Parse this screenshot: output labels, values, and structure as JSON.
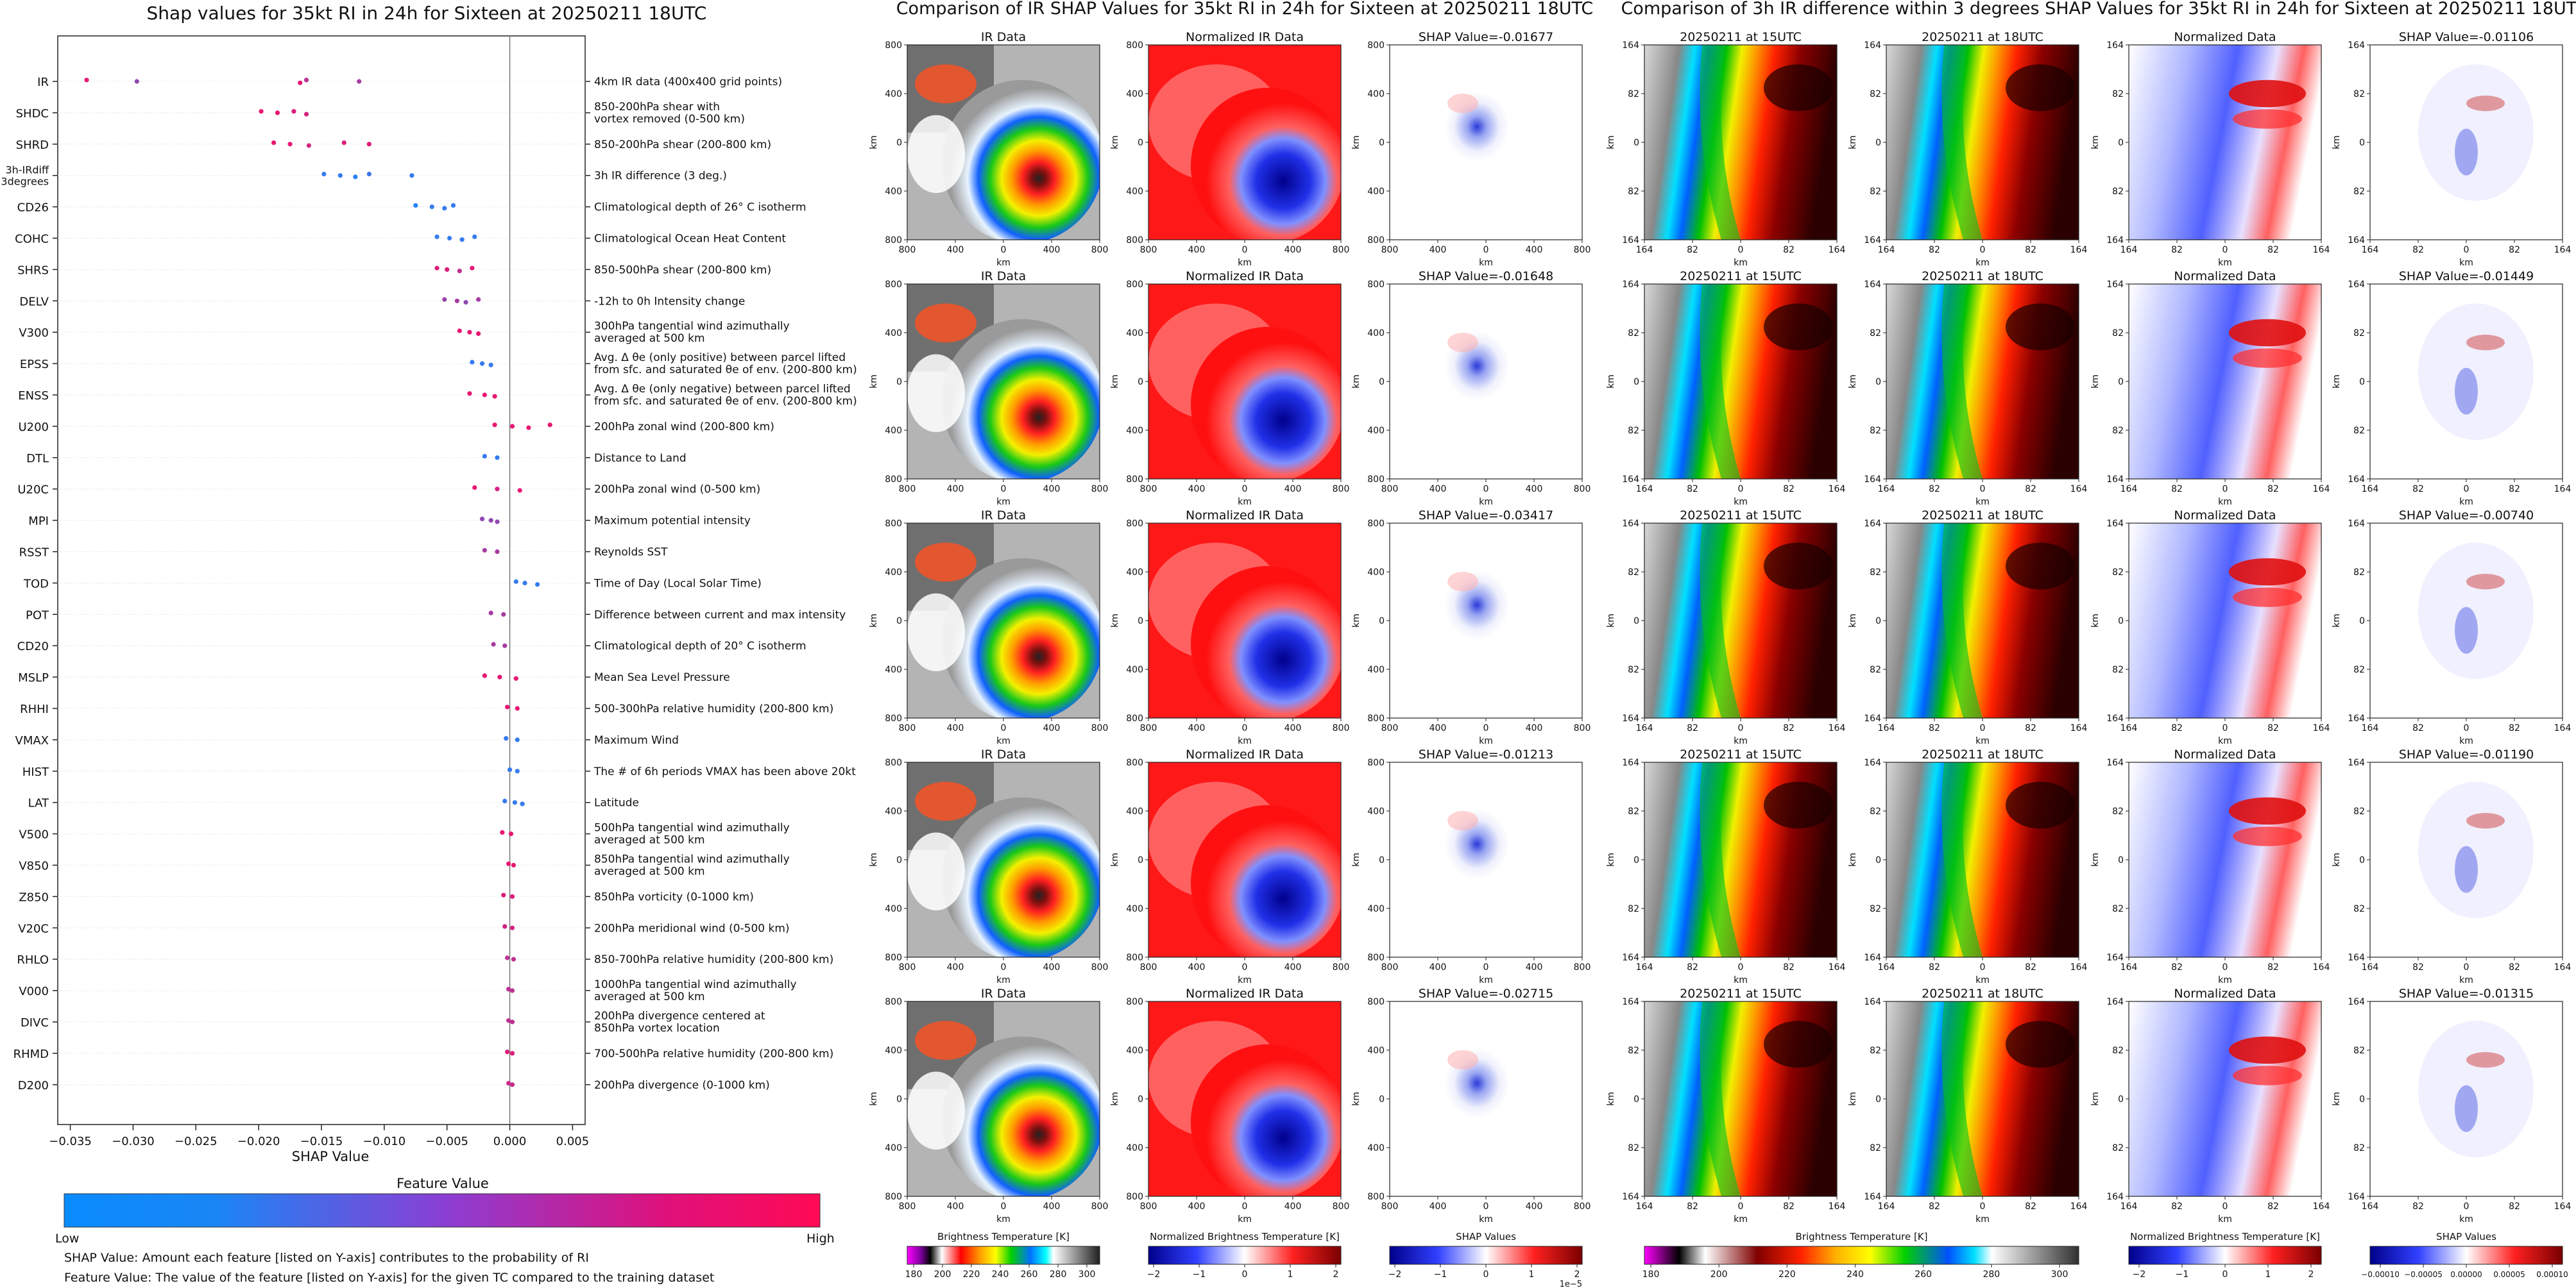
{
  "shap_chart": {
    "title": "Shap values for 35kt RI in 24h for Sixteen at 20250211 18UTC",
    "xlabel": "SHAP Value",
    "xlim": [
      -0.036,
      0.006
    ],
    "xticks": [
      -0.035,
      -0.03,
      -0.025,
      -0.02,
      -0.015,
      -0.01,
      -0.005,
      0.0,
      0.005
    ],
    "xtick_labels": [
      "−0.035",
      "−0.030",
      "−0.025",
      "−0.020",
      "−0.015",
      "−0.010",
      "−0.005",
      "0.000",
      "0.005"
    ],
    "colorbar_label": "Feature Value",
    "colorbar_low": "Low",
    "colorbar_high": "High",
    "note1": "SHAP Value: Amount each feature [listed on Y-axis] contributes to the probability of RI",
    "note2": "Feature Value: The value of the feature [listed on Y-axis] for the given TC compared to the training dataset"
  },
  "chart_data": [
    {
      "type": "scatter",
      "title": "Shap values for 35kt RI in 24h for Sixteen at 20250211 18UTC",
      "xlabel": "SHAP Value",
      "xlim": [
        -0.036,
        0.006
      ],
      "features": [
        {
          "name": "IR",
          "desc": [
            "4km IR data (400x400 grid points)"
          ],
          "points": [
            [
              -0.0337,
              0.9
            ],
            [
              -0.0297,
              0.5
            ],
            [
              -0.0167,
              0.9
            ],
            [
              -0.0162,
              0.7
            ],
            [
              -0.012,
              0.6
            ]
          ]
        },
        {
          "name": "SHDC",
          "desc": [
            "850-200hPa shear with",
            "vortex removed (0-500 km)"
          ],
          "points": [
            [
              -0.0198,
              0.9
            ],
            [
              -0.0185,
              0.9
            ],
            [
              -0.0162,
              0.8
            ],
            [
              -0.0172,
              0.85
            ]
          ]
        },
        {
          "name": "SHRD",
          "desc": [
            "850-200hPa shear (200-800 km)"
          ],
          "points": [
            [
              -0.0188,
              0.9
            ],
            [
              -0.0175,
              0.9
            ],
            [
              -0.016,
              0.8
            ],
            [
              -0.0132,
              0.85
            ],
            [
              -0.0112,
              0.85
            ]
          ]
        },
        {
          "name": "3h-IRdiff\n3degrees",
          "desc": [
            "3h IR difference (3 deg.)"
          ],
          "points": [
            [
              -0.0148,
              0.1
            ],
            [
              -0.0135,
              0.1
            ],
            [
              -0.0123,
              0.05
            ],
            [
              -0.0112,
              0.15
            ],
            [
              -0.0078,
              0.1
            ]
          ]
        },
        {
          "name": "CD26",
          "desc": [
            "Climatological depth of 26° C isotherm"
          ],
          "points": [
            [
              -0.0075,
              0.05
            ],
            [
              -0.0062,
              0.1
            ],
            [
              -0.0052,
              0.1
            ],
            [
              -0.0045,
              0.1
            ]
          ]
        },
        {
          "name": "COHC",
          "desc": [
            "Climatological Ocean Heat Content"
          ],
          "points": [
            [
              -0.0058,
              0.1
            ],
            [
              -0.0048,
              0.1
            ],
            [
              -0.0038,
              0.1
            ],
            [
              -0.0028,
              0.1
            ]
          ]
        },
        {
          "name": "SHRS",
          "desc": [
            "850-500hPa shear (200-800 km)"
          ],
          "points": [
            [
              -0.0058,
              0.85
            ],
            [
              -0.005,
              0.85
            ],
            [
              -0.004,
              0.7
            ],
            [
              -0.003,
              0.9
            ]
          ]
        },
        {
          "name": "DELV",
          "desc": [
            "-12h to 0h Intensity change"
          ],
          "points": [
            [
              -0.0052,
              0.55
            ],
            [
              -0.0042,
              0.6
            ],
            [
              -0.0035,
              0.5
            ],
            [
              -0.0025,
              0.6
            ]
          ]
        },
        {
          "name": "V300",
          "desc": [
            "300hPa tangential wind azimuthally",
            "averaged at 500 km"
          ],
          "points": [
            [
              -0.004,
              0.9
            ],
            [
              -0.0032,
              0.9
            ],
            [
              -0.0025,
              0.9
            ]
          ]
        },
        {
          "name": "EPSS",
          "desc": [
            "Avg. Δ θe (only positive) between parcel lifted",
            "from sfc. and saturated θe of env. (200-800 km)"
          ],
          "points": [
            [
              -0.003,
              0.1
            ],
            [
              -0.0022,
              0.1
            ],
            [
              -0.0015,
              0.1
            ]
          ]
        },
        {
          "name": "ENSS",
          "desc": [
            "Avg. Δ θe (only negative) between parcel lifted",
            "from sfc. and saturated θe of env. (200-800 km)"
          ],
          "points": [
            [
              -0.0032,
              0.9
            ],
            [
              -0.002,
              0.9
            ],
            [
              -0.0012,
              0.9
            ]
          ]
        },
        {
          "name": "U200",
          "desc": [
            "200hPa zonal wind (200-800 km)"
          ],
          "points": [
            [
              -0.0012,
              0.9
            ],
            [
              0.0002,
              0.9
            ],
            [
              0.0015,
              0.9
            ],
            [
              0.0032,
              0.9
            ]
          ]
        },
        {
          "name": "DTL",
          "desc": [
            "Distance to Land"
          ],
          "points": [
            [
              -0.002,
              0.1
            ],
            [
              -0.001,
              0.1
            ]
          ]
        },
        {
          "name": "U20C",
          "desc": [
            "200hPa zonal wind (0-500 km)"
          ],
          "points": [
            [
              -0.0028,
              0.9
            ],
            [
              -0.001,
              0.8
            ],
            [
              0.0008,
              0.9
            ]
          ]
        },
        {
          "name": "MPI",
          "desc": [
            "Maximum potential intensity"
          ],
          "points": [
            [
              -0.0022,
              0.5
            ],
            [
              -0.0015,
              0.5
            ],
            [
              -0.001,
              0.5
            ]
          ]
        },
        {
          "name": "RSST",
          "desc": [
            "Reynolds SST"
          ],
          "points": [
            [
              -0.002,
              0.6
            ],
            [
              -0.001,
              0.6
            ]
          ]
        },
        {
          "name": "TOD",
          "desc": [
            "Time of Day (Local Solar Time)"
          ],
          "points": [
            [
              0.0005,
              0.1
            ],
            [
              0.0012,
              0.1
            ],
            [
              0.0022,
              0.1
            ]
          ]
        },
        {
          "name": "POT",
          "desc": [
            "Difference between current and max intensity"
          ],
          "points": [
            [
              -0.0015,
              0.6
            ],
            [
              -0.0005,
              0.6
            ]
          ]
        },
        {
          "name": "CD20",
          "desc": [
            "Climatological depth of 20° C isotherm"
          ],
          "points": [
            [
              -0.0013,
              0.6
            ],
            [
              -0.0004,
              0.6
            ]
          ]
        },
        {
          "name": "MSLP",
          "desc": [
            "Mean Sea Level Pressure"
          ],
          "points": [
            [
              -0.002,
              0.9
            ],
            [
              -0.0008,
              0.9
            ],
            [
              0.0005,
              0.9
            ]
          ]
        },
        {
          "name": "RHHI",
          "desc": [
            "500-300hPa relative humidity (200-800 km)"
          ],
          "points": [
            [
              -0.0002,
              0.9
            ],
            [
              0.0006,
              0.9
            ]
          ]
        },
        {
          "name": "VMAX",
          "desc": [
            "Maximum Wind"
          ],
          "points": [
            [
              -0.0003,
              0.1
            ],
            [
              0.0006,
              0.1
            ]
          ]
        },
        {
          "name": "HIST",
          "desc": [
            "The # of 6h periods VMAX has been above 20kt"
          ],
          "points": [
            [
              0.0,
              0.1
            ],
            [
              0.0006,
              0.1
            ]
          ]
        },
        {
          "name": "LAT",
          "desc": [
            "Latitude"
          ],
          "points": [
            [
              -0.0004,
              0.1
            ],
            [
              0.0004,
              0.1
            ],
            [
              0.001,
              0.1
            ]
          ]
        },
        {
          "name": "V500",
          "desc": [
            "500hPa tangential wind azimuthally",
            "averaged at 500 km"
          ],
          "points": [
            [
              -0.0006,
              0.9
            ],
            [
              0.0001,
              0.9
            ]
          ]
        },
        {
          "name": "V850",
          "desc": [
            "850hPa tangential wind azimuthally",
            "averaged at 500 km"
          ],
          "points": [
            [
              -0.0001,
              0.9
            ],
            [
              0.0003,
              0.9
            ]
          ]
        },
        {
          "name": "Z850",
          "desc": [
            "850hPa vorticity (0-1000 km)"
          ],
          "points": [
            [
              -0.0005,
              0.85
            ],
            [
              0.0002,
              0.85
            ]
          ]
        },
        {
          "name": "V20C",
          "desc": [
            "200hPa meridional wind (0-500 km)"
          ],
          "points": [
            [
              -0.0004,
              0.8
            ],
            [
              0.0002,
              0.8
            ]
          ]
        },
        {
          "name": "RHLO",
          "desc": [
            "850-700hPa relative humidity (200-800 km)"
          ],
          "points": [
            [
              -0.0002,
              0.7
            ],
            [
              0.0003,
              0.7
            ]
          ]
        },
        {
          "name": "V000",
          "desc": [
            "1000hPa tangential wind azimuthally",
            "averaged at 500 km"
          ],
          "points": [
            [
              -0.0001,
              0.7
            ],
            [
              0.0002,
              0.7
            ]
          ]
        },
        {
          "name": "DIVC",
          "desc": [
            "200hPa divergence centered at",
            "850hPa vortex location"
          ],
          "points": [
            [
              -0.0001,
              0.7
            ],
            [
              0.0002,
              0.7
            ]
          ]
        },
        {
          "name": "RHMD",
          "desc": [
            "700-500hPa relative humidity (200-800 km)"
          ],
          "points": [
            [
              -0.0002,
              0.85
            ],
            [
              0.0002,
              0.85
            ]
          ]
        },
        {
          "name": "D200",
          "desc": [
            "200hPa divergence (0-1000 km)"
          ],
          "points": [
            [
              -0.0001,
              0.75
            ],
            [
              0.0002,
              0.75
            ]
          ]
        }
      ]
    },
    {
      "type": "heatmap",
      "title": "Comparison of IR SHAP Values for 35kt RI in 24h for Sixteen at 20250211 18UTC",
      "panel_titles": [
        "IR Data",
        "Normalized IR Data",
        "SHAP Value=-0.01677",
        "SHAP Value=-0.01648",
        "SHAP Value=-0.03417",
        "SHAP Value=-0.01213",
        "SHAP Value=-0.02715"
      ],
      "shap_values": [
        -0.01677,
        -0.01648,
        -0.03417,
        -0.01213,
        -0.02715
      ],
      "axis_label": "km",
      "x_ticks": [
        "800",
        "400",
        "0",
        "400",
        "800"
      ],
      "y_ticks": [
        "800",
        "400",
        "0",
        "400",
        "800"
      ],
      "colorbars": [
        {
          "label": "Brightness Temperature [K]",
          "ticks": [
            "180",
            "200",
            "220",
            "240",
            "260",
            "280",
            "300"
          ]
        },
        {
          "label": "Normalized Brightness Temperature [K]",
          "ticks": [
            "−2",
            "−1",
            "0",
            "1",
            "2"
          ]
        },
        {
          "label": "SHAP Values",
          "ticks": [
            "−2",
            "−1",
            "0",
            "1",
            "2"
          ],
          "exponent": "1e−5"
        }
      ]
    },
    {
      "type": "heatmap",
      "title": "Comparison of 3h IR difference within 3 degrees SHAP Values for 35kt RI in 24h for Sixteen at 20250211 18UTC",
      "panel_titles": [
        "20250211 at 15UTC",
        "20250211 at 18UTC",
        "Normalized Data",
        "SHAP Value=-0.01106",
        "SHAP Value=-0.01449",
        "SHAP Value=-0.00740",
        "SHAP Value=-0.01190",
        "SHAP Value=-0.01315"
      ],
      "shap_values": [
        -0.01106,
        -0.01449,
        -0.0074,
        -0.0119,
        -0.01315
      ],
      "axis_label": "km",
      "x_ticks": [
        "164",
        "82",
        "0",
        "82",
        "164"
      ],
      "y_ticks": [
        "164",
        "82",
        "0",
        "82",
        "164"
      ],
      "colorbars": [
        {
          "label": "Brightness Temperature [K]",
          "ticks": [
            "180",
            "200",
            "220",
            "240",
            "260",
            "280",
            "300"
          ]
        },
        {
          "label": "Normalized Brightness Temperature [K]",
          "ticks": [
            "−2",
            "−1",
            "0",
            "1",
            "2"
          ]
        },
        {
          "label": "SHAP Values",
          "ticks": [
            "−0.00010",
            "−0.00005",
            "0.00000",
            "0.00005",
            "0.00010"
          ]
        }
      ]
    }
  ],
  "ir_grid": {
    "title": "Comparison of IR SHAP Values for 35kt RI in 24h for Sixteen at 20250211 18UTC",
    "col_titles": [
      "IR Data",
      "Normalized IR Data"
    ],
    "shap_titles": [
      "SHAP Value=-0.01677",
      "SHAP Value=-0.01648",
      "SHAP Value=-0.03417",
      "SHAP Value=-0.01213",
      "SHAP Value=-0.02715"
    ],
    "axis_label": "km",
    "ticks": [
      "800",
      "400",
      "0",
      "400",
      "800"
    ],
    "colorbars": [
      {
        "label": "Brightness Temperature [K]",
        "ticks": [
          "180",
          "200",
          "220",
          "240",
          "260",
          "280",
          "300"
        ]
      },
      {
        "label": "Normalized Brightness Temperature [K]",
        "ticks": [
          "−2",
          "−1",
          "0",
          "1",
          "2"
        ]
      },
      {
        "label": "SHAP Values",
        "ticks": [
          "−2",
          "−1",
          "0",
          "1",
          "2"
        ],
        "exponent": "1e−5"
      }
    ]
  },
  "diff_grid": {
    "title": "Comparison of 3h IR difference within 3 degrees SHAP Values for 35kt RI in 24h for Sixteen at 20250211 18UTC",
    "col_titles": [
      "20250211 at 15UTC",
      "20250211 at 18UTC",
      "Normalized Data"
    ],
    "shap_titles": [
      "SHAP Value=-0.01106",
      "SHAP Value=-0.01449",
      "SHAP Value=-0.00740",
      "SHAP Value=-0.01190",
      "SHAP Value=-0.01315"
    ],
    "axis_label": "km",
    "ticks": [
      "164",
      "82",
      "0",
      "82",
      "164"
    ],
    "colorbars": [
      {
        "label": "Brightness Temperature [K]",
        "ticks": [
          "180",
          "200",
          "220",
          "240",
          "260",
          "280",
          "300"
        ]
      },
      {
        "label": "Normalized Brightness Temperature [K]",
        "ticks": [
          "−2",
          "−1",
          "0",
          "1",
          "2"
        ]
      },
      {
        "label": "SHAP Values",
        "ticks": [
          "−0.00010",
          "−0.00005",
          "0.00000",
          "0.00005",
          "0.00010"
        ]
      }
    ]
  },
  "colors": {
    "low": "#1e88ff",
    "high": "#ff0a62",
    "neg": "#0000cc",
    "pos": "#cc0000"
  }
}
